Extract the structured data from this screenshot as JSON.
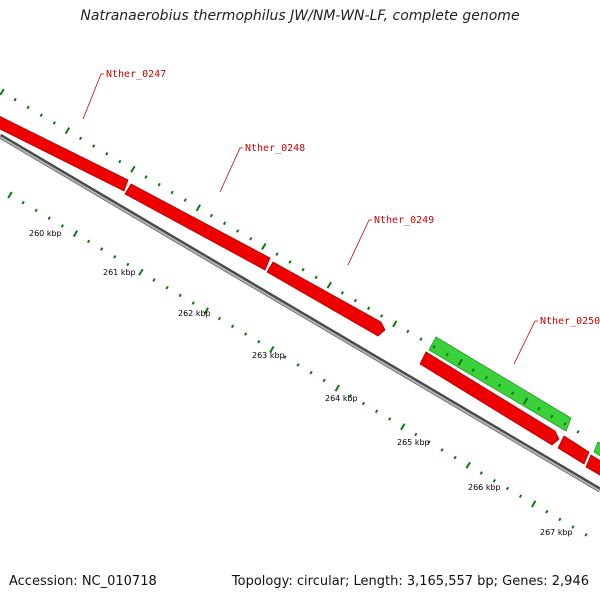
{
  "title": "Natranaerobius thermophilus JW/NM-WN-LF, complete genome",
  "accession": "Accession: NC_010718",
  "summary": "Topology: circular; Length: 3,165,557 bp; Genes: 2,946",
  "colors": {
    "forward_gene": "#1fc71f",
    "reverse_gene": "#ee0000",
    "backbone": "#888888",
    "tick": "#0b7a0b",
    "label": "#cc0000"
  },
  "genes": [
    {
      "name": "Nther_0247"
    },
    {
      "name": "Nther_0248"
    },
    {
      "name": "Nther_0249"
    },
    {
      "name": "Nther_0250"
    }
  ],
  "scale_labels": [
    "260 kbp",
    "261 kbp",
    "262 kbp",
    "263 kbp",
    "264 kbp",
    "265 kbp",
    "266 kbp",
    "267 kbp"
  ]
}
